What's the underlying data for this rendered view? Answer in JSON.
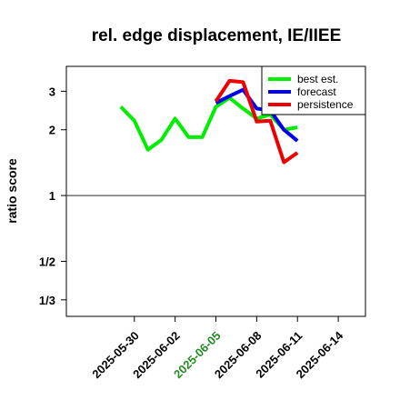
{
  "chart_data": {
    "type": "line",
    "title": "rel. edge displacement, IE/IIEE",
    "xlabel": "",
    "ylabel": "ratio score",
    "y_scale": "log",
    "ylim": [
      0.28,
      3.9
    ],
    "xlim": [
      "2025-05-25",
      "2025-06-16"
    ],
    "y_ticks": [
      {
        "value": 3,
        "label": "3"
      },
      {
        "value": 2,
        "label": "2"
      },
      {
        "value": 1,
        "label": "1"
      },
      {
        "value": 0.5,
        "label": "1/2"
      },
      {
        "value": 0.3333,
        "label": "1/3"
      }
    ],
    "x_ticks": [
      {
        "date": "2025-05-30",
        "label": "2025-05-30",
        "color": "#000000"
      },
      {
        "date": "2025-06-02",
        "label": "2025-06-02",
        "color": "#000000"
      },
      {
        "date": "2025-06-05",
        "label": "2025-06-05",
        "color": "#228B22"
      },
      {
        "date": "2025-06-08",
        "label": "2025-06-08",
        "color": "#000000"
      },
      {
        "date": "2025-06-11",
        "label": "2025-06-11",
        "color": "#000000"
      },
      {
        "date": "2025-06-14",
        "label": "2025-06-14",
        "color": "#000000"
      }
    ],
    "reference_line": 1,
    "grid": false,
    "legend_position": "top-right",
    "series": [
      {
        "name": "best est.",
        "color": "#00ee00",
        "points": [
          [
            "2025-05-29",
            2.55
          ],
          [
            "2025-05-30",
            2.2
          ],
          [
            "2025-05-31",
            1.62
          ],
          [
            "2025-06-01",
            1.8
          ],
          [
            "2025-06-02",
            2.25
          ],
          [
            "2025-06-03",
            1.85
          ],
          [
            "2025-06-04",
            1.85
          ],
          [
            "2025-06-05",
            2.55
          ],
          [
            "2025-06-06",
            2.8
          ],
          [
            "2025-06-07",
            2.5
          ],
          [
            "2025-06-08",
            2.25
          ],
          [
            "2025-06-09",
            2.35
          ],
          [
            "2025-06-10",
            2.0
          ],
          [
            "2025-06-11",
            2.05
          ]
        ]
      },
      {
        "name": "forecast",
        "color": "#0000ee",
        "points": [
          [
            "2025-06-05",
            2.65
          ],
          [
            "2025-06-06",
            2.85
          ],
          [
            "2025-06-07",
            3.05
          ],
          [
            "2025-06-08",
            2.5
          ],
          [
            "2025-06-09",
            2.45
          ],
          [
            "2025-06-10",
            2.0
          ],
          [
            "2025-06-11",
            1.78
          ]
        ]
      },
      {
        "name": "persistence",
        "color": "#ee0000",
        "points": [
          [
            "2025-06-05",
            2.7
          ],
          [
            "2025-06-06",
            3.35
          ],
          [
            "2025-06-07",
            3.3
          ],
          [
            "2025-06-08",
            2.18
          ],
          [
            "2025-06-09",
            2.2
          ],
          [
            "2025-06-10",
            1.42
          ],
          [
            "2025-06-11",
            1.57
          ]
        ]
      }
    ]
  }
}
